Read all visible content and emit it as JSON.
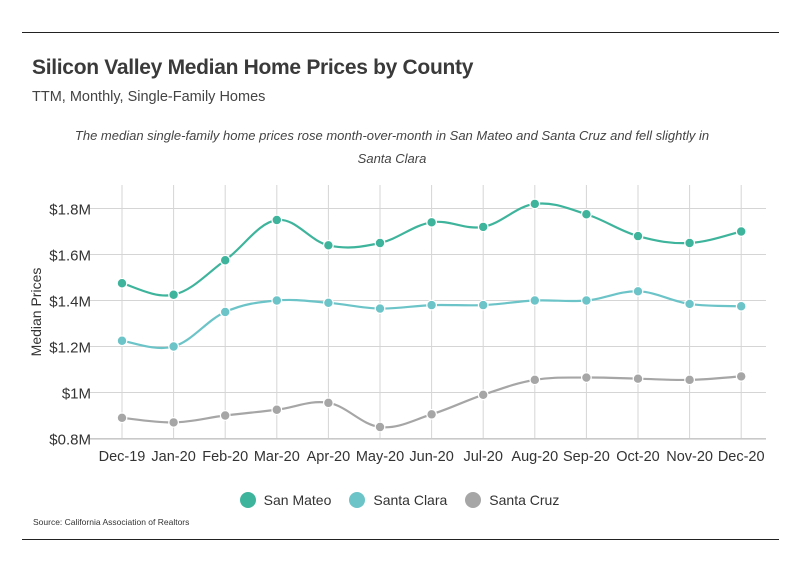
{
  "title": "Silicon Valley Median Home Prices by County",
  "subtitle": "TTM, Monthly, Single-Family Homes",
  "description": "The median single-family home prices rose month-over-month in San Mateo and Santa Cruz and fell slightly in Santa Clara",
  "source": "Source:  California Association of Realtors",
  "chart_data": {
    "type": "line",
    "title": "",
    "xlabel": "",
    "ylabel": "Median Prices",
    "categories": [
      "Dec-19",
      "Jan-20",
      "Feb-20",
      "Mar-20",
      "Apr-20",
      "May-20",
      "Jun-20",
      "Jul-20",
      "Aug-20",
      "Sep-20",
      "Oct-20",
      "Nov-20",
      "Dec-20"
    ],
    "ylim": [
      0.75,
      1.85
    ],
    "yticks": [
      0.8,
      1.0,
      1.2,
      1.4,
      1.6,
      1.8
    ],
    "ytick_labels": [
      "$0.8M",
      "$1M",
      "$1.2M",
      "$1.4M",
      "$1.6M",
      "$1.8M"
    ],
    "grid": true,
    "legend": "bottom-center",
    "series": [
      {
        "name": "San Mateo",
        "color": "#3fb49c",
        "values": [
          1.475,
          1.425,
          1.575,
          1.75,
          1.64,
          1.65,
          1.74,
          1.72,
          1.82,
          1.775,
          1.68,
          1.65,
          1.7
        ]
      },
      {
        "name": "Santa Clara",
        "color": "#6cc4c8",
        "values": [
          1.225,
          1.2,
          1.35,
          1.4,
          1.39,
          1.365,
          1.38,
          1.38,
          1.4,
          1.4,
          1.44,
          1.385,
          1.375
        ]
      },
      {
        "name": "Santa Cruz",
        "color": "#a6a6a6",
        "values": [
          0.89,
          0.87,
          0.9,
          0.925,
          0.955,
          0.85,
          0.905,
          0.99,
          1.055,
          1.065,
          1.06,
          1.055,
          1.07
        ]
      }
    ]
  }
}
